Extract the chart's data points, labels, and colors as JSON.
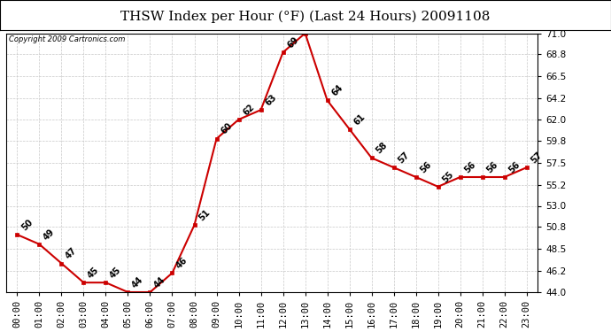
{
  "title": "THSW Index per Hour (°F) (Last 24 Hours) 20091108",
  "copyright": "Copyright 2009 Cartronics.com",
  "hours": [
    "00:00",
    "01:00",
    "02:00",
    "03:00",
    "04:00",
    "05:00",
    "06:00",
    "07:00",
    "08:00",
    "09:00",
    "10:00",
    "11:00",
    "12:00",
    "13:00",
    "14:00",
    "15:00",
    "16:00",
    "17:00",
    "18:00",
    "19:00",
    "20:00",
    "21:00",
    "22:00",
    "23:00"
  ],
  "values": [
    50,
    49,
    47,
    45,
    45,
    44,
    44,
    46,
    51,
    60,
    62,
    63,
    69,
    71,
    64,
    61,
    58,
    57,
    56,
    55,
    56,
    56,
    56,
    57
  ],
  "ylim": [
    44.0,
    71.0
  ],
  "yticks": [
    44.0,
    46.2,
    48.5,
    50.8,
    53.0,
    55.2,
    57.5,
    59.8,
    62.0,
    64.2,
    66.5,
    68.8,
    71.0
  ],
  "line_color": "#cc0000",
  "marker_color": "#cc0000",
  "background_color": "#ffffff",
  "grid_color": "#c8c8c8",
  "title_fontsize": 11,
  "label_fontsize": 7.5,
  "annot_fontsize": 7
}
